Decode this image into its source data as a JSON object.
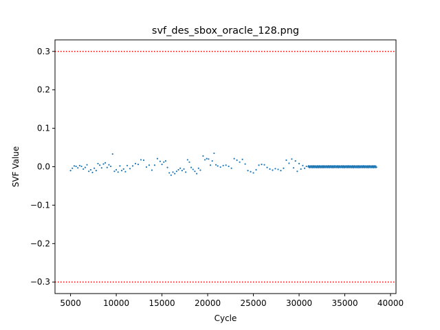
{
  "chart_data": {
    "type": "scatter",
    "title": "svf_des_sbox_oracle_128.png",
    "xlabel": "Cycle",
    "ylabel": "SVF Value",
    "xlim": [
      3300,
      40600
    ],
    "ylim": [
      -0.33,
      0.33
    ],
    "xticks": [
      5000,
      10000,
      15000,
      20000,
      25000,
      30000,
      35000,
      40000
    ],
    "xtick_labels": [
      "5000",
      "10000",
      "15000",
      "20000",
      "25000",
      "30000",
      "35000",
      "40000"
    ],
    "yticks": [
      -0.3,
      -0.2,
      -0.1,
      0.0,
      0.1,
      0.2,
      0.3
    ],
    "ytick_labels": [
      "−0.3",
      "−0.2",
      "−0.1",
      "0.0",
      "0.1",
      "0.2",
      "0.3"
    ],
    "reference_lines": [
      {
        "y": 0.3,
        "color": "#ff0000",
        "style": "dotted"
      },
      {
        "y": -0.3,
        "color": "#ff0000",
        "style": "dotted"
      }
    ],
    "grid": false,
    "series": [
      {
        "color": "#1f77b4",
        "points": [
          [
            5000,
            -0.01
          ],
          [
            5200,
            -0.004
          ],
          [
            5400,
            0.002
          ],
          [
            5600,
            0.001
          ],
          [
            5800,
            -0.003
          ],
          [
            6000,
            0.003
          ],
          [
            6200,
            0.001
          ],
          [
            6400,
            -0.006
          ],
          [
            6600,
            -0.002
          ],
          [
            6800,
            0.005
          ],
          [
            7000,
            -0.012
          ],
          [
            7200,
            -0.008
          ],
          [
            7400,
            -0.015
          ],
          [
            7600,
            -0.004
          ],
          [
            7800,
            -0.01
          ],
          [
            8000,
            0.008
          ],
          [
            8200,
            0.004
          ],
          [
            8400,
            -0.003
          ],
          [
            8600,
            0.007
          ],
          [
            8800,
            0.01
          ],
          [
            9000,
            -0.002
          ],
          [
            9200,
            0.005
          ],
          [
            9400,
            0.001
          ],
          [
            9600,
            0.033
          ],
          [
            9800,
            -0.012
          ],
          [
            10000,
            -0.008
          ],
          [
            10200,
            -0.014
          ],
          [
            10400,
            0.002
          ],
          [
            10600,
            -0.01
          ],
          [
            10800,
            -0.006
          ],
          [
            11000,
            -0.013
          ],
          [
            11200,
            0.003
          ],
          [
            11500,
            -0.005
          ],
          [
            11800,
            0.002
          ],
          [
            12100,
            0.008
          ],
          [
            12400,
            0.006
          ],
          [
            12700,
            0.018
          ],
          [
            13000,
            0.017
          ],
          [
            13300,
            -0.001
          ],
          [
            13600,
            0.004
          ],
          [
            13900,
            -0.009
          ],
          [
            14200,
            0.004
          ],
          [
            14500,
            0.021
          ],
          [
            14800,
            0.014
          ],
          [
            15000,
            0.006
          ],
          [
            15200,
            0.012
          ],
          [
            15400,
            0.015
          ],
          [
            15600,
            -0.002
          ],
          [
            15800,
            -0.016
          ],
          [
            16000,
            -0.022
          ],
          [
            16200,
            -0.014
          ],
          [
            16400,
            -0.018
          ],
          [
            16600,
            -0.012
          ],
          [
            16800,
            -0.008
          ],
          [
            17000,
            -0.004
          ],
          [
            17200,
            -0.01
          ],
          [
            17400,
            -0.006
          ],
          [
            17600,
            -0.014
          ],
          [
            17800,
            0.018
          ],
          [
            18000,
            0.012
          ],
          [
            18200,
            -0.002
          ],
          [
            18400,
            -0.007
          ],
          [
            18600,
            -0.012
          ],
          [
            18800,
            -0.018
          ],
          [
            19000,
            -0.004
          ],
          [
            19200,
            -0.009
          ],
          [
            19500,
            0.028
          ],
          [
            19700,
            0.018
          ],
          [
            19900,
            0.021
          ],
          [
            20100,
            0.02
          ],
          [
            20300,
            0.004
          ],
          [
            20500,
            0.015
          ],
          [
            20700,
            0.035
          ],
          [
            20900,
            0.005
          ],
          [
            21100,
            0.002
          ],
          [
            21400,
            -0.001
          ],
          [
            21700,
            0.003
          ],
          [
            22000,
            0.004
          ],
          [
            22300,
            0.001
          ],
          [
            22600,
            -0.004
          ],
          [
            22900,
            0.021
          ],
          [
            23200,
            0.017
          ],
          [
            23500,
            0.012
          ],
          [
            23800,
            0.019
          ],
          [
            24100,
            0.007
          ],
          [
            24400,
            -0.01
          ],
          [
            24700,
            -0.013
          ],
          [
            25000,
            -0.016
          ],
          [
            25300,
            -0.008
          ],
          [
            25600,
            0.004
          ],
          [
            25900,
            0.006
          ],
          [
            26200,
            0.005
          ],
          [
            26500,
            -0.002
          ],
          [
            26800,
            -0.006
          ],
          [
            27100,
            -0.009
          ],
          [
            27400,
            -0.005
          ],
          [
            27700,
            -0.007
          ],
          [
            28000,
            -0.01
          ],
          [
            28300,
            -0.004
          ],
          [
            28600,
            0.017
          ],
          [
            28900,
            0.009
          ],
          [
            29200,
            0.02
          ],
          [
            29400,
            -0.003
          ],
          [
            29600,
            0.015
          ],
          [
            29800,
            -0.012
          ],
          [
            30000,
            0.008
          ],
          [
            30200,
            -0.006
          ],
          [
            30400,
            0.003
          ],
          [
            30600,
            -0.004
          ],
          [
            30800,
            0.001
          ]
        ],
        "dense_band": {
          "x_start": 31000,
          "x_end": 38500,
          "step": 45,
          "center": 0.0,
          "spread": 0.004
        }
      }
    ]
  }
}
